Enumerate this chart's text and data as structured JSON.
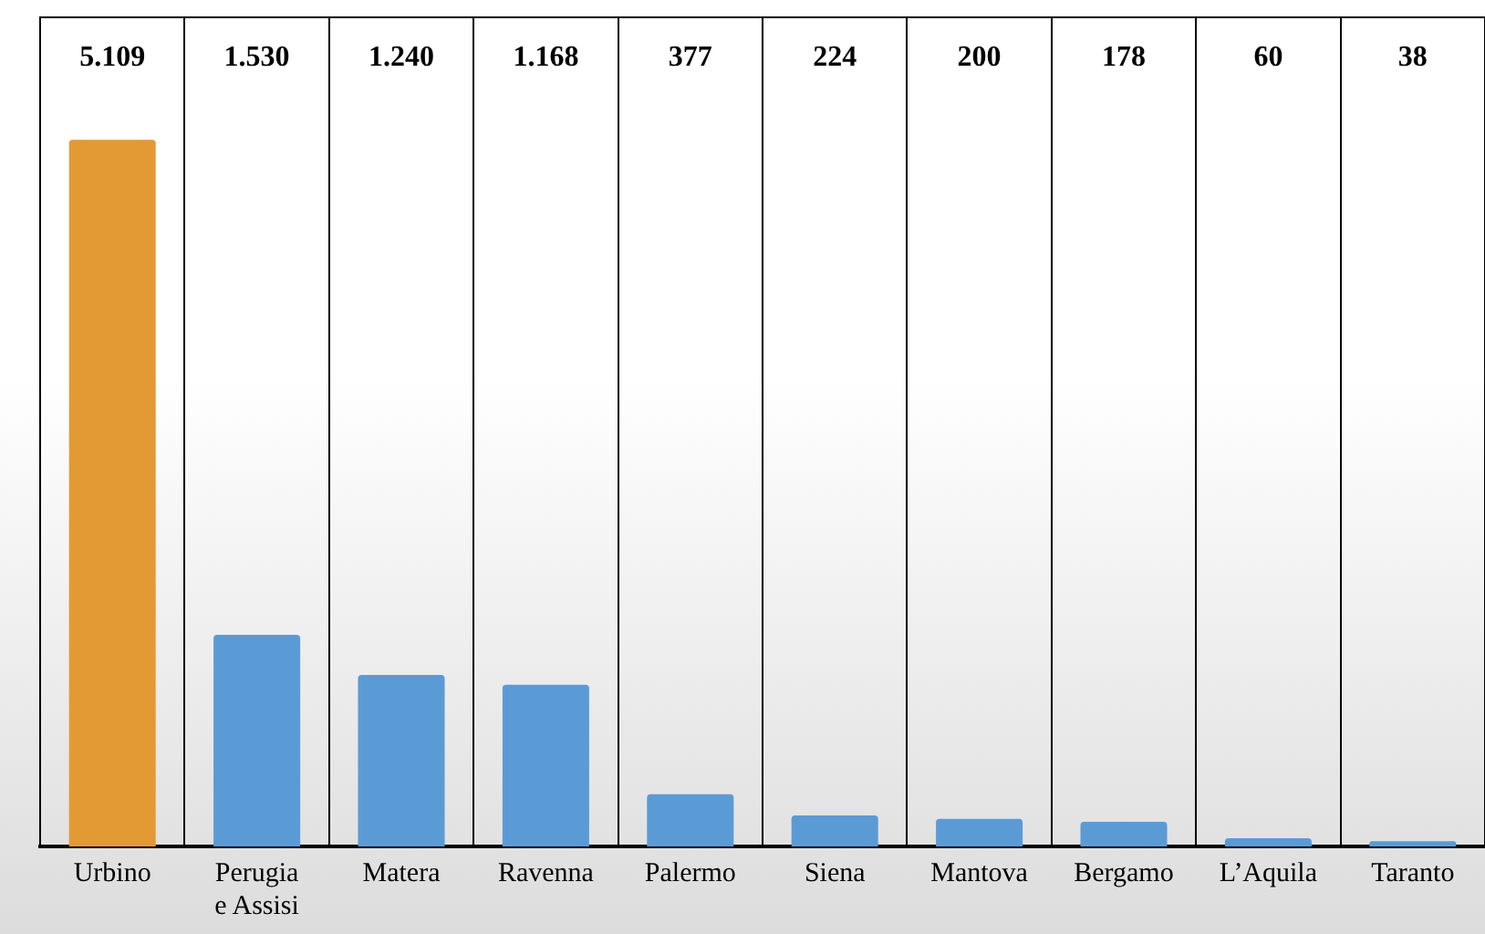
{
  "chart_data": {
    "type": "bar",
    "relative": false,
    "categories": [
      "Urbino",
      "Perugia e Assisi",
      "Matera",
      "Ravenna",
      "Palermo",
      "Siena",
      "Mantova",
      "Bergamo",
      "L’Aquila",
      "Taranto"
    ],
    "values": [
      5109,
      1530,
      1240,
      1168,
      377,
      224,
      200,
      178,
      60,
      38
    ],
    "colors": [
      "#e39a35",
      "#5b9bd5",
      "#5b9bd5",
      "#5b9bd5",
      "#5b9bd5",
      "#5b9bd5",
      "#5b9bd5",
      "#5b9bd5",
      "#5b9bd5",
      "#5b9bd5"
    ],
    "value_labels": [
      "5.109",
      "1.530",
      "1.240",
      "1.168",
      "377",
      "224",
      "200",
      "178",
      "60",
      "38"
    ],
    "grid": "x",
    "legend": false
  }
}
